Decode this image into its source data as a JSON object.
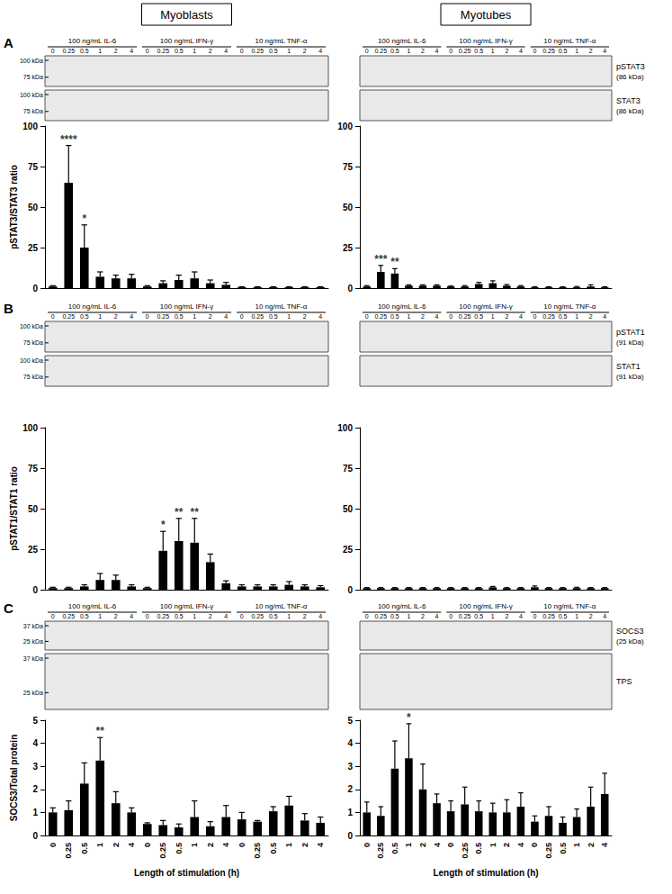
{
  "headers": [
    "Myoblasts",
    "Myotubes"
  ],
  "treatments": [
    "100 ng/mL IL-6",
    "100 ng/mL IFN-γ",
    "10 ng/mL TNF-α"
  ],
  "lanes": [
    "0",
    "0.25",
    "0.5",
    "1",
    "2",
    "4"
  ],
  "panels": [
    {
      "letter": "A",
      "blots": [
        {
          "name": "pSTAT3",
          "size": "(86 kDa)",
          "markers_left": [
            "100 kDa",
            "75 kDa"
          ],
          "markers_right": []
        },
        {
          "name": "STAT3",
          "size": "(86 kDa)",
          "markers_left": [
            "100 kDa",
            "75 kDa"
          ],
          "markers_right": []
        }
      ]
    },
    {
      "letter": "B",
      "blots": [
        {
          "name": "pSTAT1",
          "size": "(91 kDa)",
          "markers_left": [
            "100 kDa",
            "75 kDa"
          ],
          "markers_right": []
        },
        {
          "name": "STAT1",
          "size": "(91 kDa)",
          "markers_left": [
            "100 kDa",
            "75 kDa"
          ],
          "markers_right": []
        }
      ]
    },
    {
      "letter": "C",
      "blots": [
        {
          "name": "SOCS3",
          "size": "(25 kDa)",
          "markers_left": [
            "37 kDa",
            "25 kDa"
          ],
          "markers_right": []
        },
        {
          "name": "TPS",
          "size": "",
          "markers_left": [
            "37 kDa",
            "25 kDa"
          ],
          "markers_right": []
        }
      ]
    }
  ],
  "chart_data": [
    {
      "type": "bar",
      "ylabel": "pSTAT3/STAT3 ratio",
      "color": "#000000",
      "grid": false,
      "tick_labels": "y",
      "categories": [
        "0",
        "0.25",
        "0.5",
        "1",
        "2",
        "4",
        "0",
        "0.25",
        "0.5",
        "1",
        "2",
        "4",
        "0",
        "0.25",
        "0.5",
        "1",
        "2",
        "4"
      ],
      "values": [
        1,
        65,
        25,
        7,
        6,
        6,
        1,
        3,
        5,
        6,
        3,
        2,
        0.5,
        0.5,
        0.5,
        0.5,
        0.5,
        0.5
      ],
      "errors": [
        0.5,
        23,
        14,
        3,
        2,
        2.5,
        0.5,
        1.5,
        3,
        4,
        2,
        1.5,
        0.3,
        0.3,
        0.3,
        0.3,
        0.3,
        0.3
      ],
      "annotations": [
        {
          "index": 1,
          "text": "****"
        },
        {
          "index": 2,
          "text": "*"
        }
      ],
      "ylim": [
        0,
        100
      ],
      "yticks": [
        0,
        25,
        50,
        75,
        100
      ]
    },
    {
      "type": "bar",
      "color": "#000000",
      "grid": false,
      "tick_labels": "y",
      "categories": [
        "0",
        "0.25",
        "0.5",
        "1",
        "2",
        "4",
        "0",
        "0.25",
        "0.5",
        "1",
        "2",
        "4",
        "0",
        "0.25",
        "0.5",
        "1",
        "2",
        "4"
      ],
      "values": [
        1,
        10,
        9,
        1.5,
        1.5,
        1.5,
        1,
        1,
        2.5,
        3,
        1.5,
        1,
        0.5,
        0.5,
        0.5,
        0.5,
        1,
        0.5
      ],
      "errors": [
        0.5,
        4,
        3,
        0.5,
        0.5,
        0.5,
        0.3,
        0.5,
        1,
        1.5,
        0.7,
        0.5,
        0.3,
        0.3,
        0.3,
        0.5,
        1,
        0.3
      ],
      "annotations": [
        {
          "index": 1,
          "text": "***"
        },
        {
          "index": 2,
          "text": "**"
        }
      ],
      "ylim": [
        0,
        100
      ],
      "yticks": [
        0,
        25,
        50,
        75,
        100
      ]
    },
    {
      "type": "bar",
      "ylabel": "pSTAT1/STAT1 ratio",
      "color": "#000000",
      "grid": false,
      "tick_labels": "y",
      "categories": [
        "0",
        "0.25",
        "0.5",
        "1",
        "2",
        "4",
        "0",
        "0.25",
        "0.5",
        "1",
        "2",
        "4",
        "0",
        "0.25",
        "0.5",
        "1",
        "2",
        "4"
      ],
      "values": [
        1,
        1,
        2,
        6,
        6,
        2,
        1,
        24,
        30,
        29,
        17,
        4,
        2,
        2,
        2,
        3,
        2,
        1.5
      ],
      "errors": [
        0.5,
        0.5,
        1,
        4,
        3,
        1,
        0.5,
        12,
        14,
        15,
        5,
        1.5,
        1,
        1,
        1,
        2,
        1,
        1
      ],
      "annotations": [
        {
          "index": 7,
          "text": "*"
        },
        {
          "index": 8,
          "text": "**"
        },
        {
          "index": 9,
          "text": "**"
        }
      ],
      "ylim": [
        0,
        100
      ],
      "yticks": [
        0,
        25,
        50,
        75,
        100
      ]
    },
    {
      "type": "bar",
      "color": "#000000",
      "grid": false,
      "tick_labels": "y",
      "categories": [
        "0",
        "0.25",
        "0.5",
        "1",
        "2",
        "4",
        "0",
        "0.25",
        "0.5",
        "1",
        "2",
        "4",
        "0",
        "0.25",
        "0.5",
        "1",
        "2",
        "4"
      ],
      "values": [
        1,
        1,
        1,
        1,
        1,
        1,
        1,
        1,
        1,
        1.5,
        1,
        1,
        1.5,
        1,
        1,
        1,
        1,
        1
      ],
      "errors": [
        0.3,
        0.3,
        0.3,
        0.3,
        0.3,
        0.3,
        0.3,
        0.3,
        0.3,
        0.5,
        0.3,
        0.3,
        0.8,
        0.3,
        0.3,
        0.5,
        0.3,
        0.3
      ],
      "annotations": [],
      "ylim": [
        0,
        100
      ],
      "yticks": [
        0,
        25,
        50,
        75,
        100
      ]
    },
    {
      "type": "bar",
      "ylabel": "SOCS3/Total protein",
      "xlabel": "Length of stimulation (h)",
      "color": "#000000",
      "grid": false,
      "categories": [
        "0",
        "0.25",
        "0.5",
        "1",
        "2",
        "4",
        "0",
        "0.25",
        "0.5",
        "1",
        "2",
        "4",
        "0",
        "0.25",
        "0.5",
        "1",
        "2",
        "4"
      ],
      "values": [
        1,
        1.1,
        2.25,
        3.25,
        1.4,
        1,
        0.5,
        0.45,
        0.35,
        0.8,
        0.4,
        0.8,
        0.7,
        0.6,
        1.05,
        1.3,
        0.65,
        0.55
      ],
      "errors": [
        0.2,
        0.4,
        0.9,
        1,
        0.5,
        0.2,
        0.05,
        0.2,
        0.15,
        0.7,
        0.2,
        0.5,
        0.3,
        0.05,
        0.2,
        0.4,
        0.3,
        0.25
      ],
      "annotations": [
        {
          "index": 3,
          "text": "**"
        }
      ],
      "ylim": [
        0,
        5
      ],
      "yticks": [
        0,
        1,
        2,
        3,
        4,
        5
      ]
    },
    {
      "type": "bar",
      "xlabel": "Length of stimulation (h)",
      "color": "#000000",
      "grid": false,
      "categories": [
        "0",
        "0.25",
        "0.5",
        "1",
        "2",
        "4",
        "0",
        "0.25",
        "0.5",
        "1",
        "2",
        "4",
        "0",
        "0.25",
        "0.5",
        "1",
        "2",
        "4"
      ],
      "values": [
        1,
        0.85,
        2.9,
        3.35,
        2,
        1.4,
        1.05,
        1.35,
        1.05,
        1,
        1,
        1.25,
        0.6,
        0.85,
        0.55,
        0.8,
        1.25,
        1.8
      ],
      "errors": [
        0.45,
        0.4,
        1.2,
        1.5,
        1.1,
        0.4,
        0.45,
        0.75,
        0.45,
        0.4,
        0.55,
        0.6,
        0.25,
        0.4,
        0.25,
        0.35,
        0.85,
        0.9
      ],
      "annotations": [
        {
          "index": 3,
          "text": "*"
        }
      ],
      "ylim": [
        0,
        5
      ],
      "yticks": [
        0,
        1,
        2,
        3,
        4,
        5
      ]
    }
  ]
}
